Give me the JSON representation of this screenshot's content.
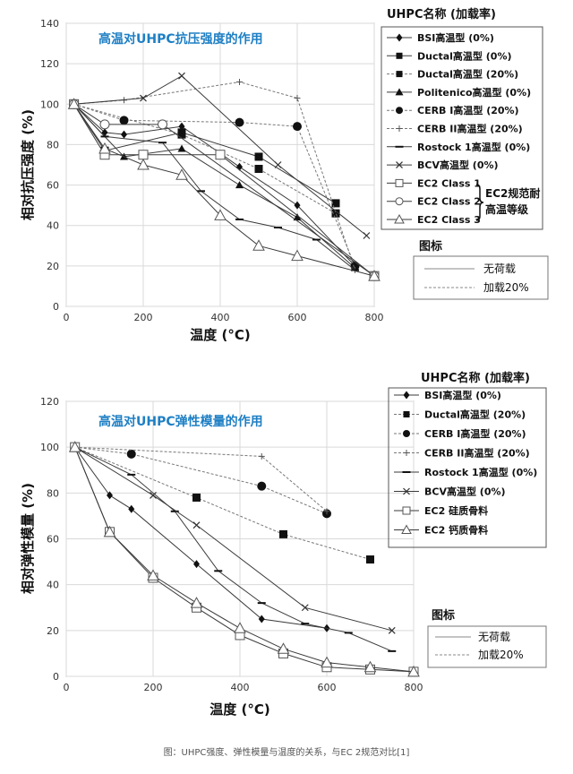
{
  "colors": {
    "line": "#3a3a3a",
    "axis": "#999999",
    "grid": "#d9d9d9",
    "title": "#1e7fc4"
  },
  "caption": "图：UHPC强度、弹性模量与温度的关系，与EC 2规范对比[1]",
  "chart_data": [
    {
      "type": "line",
      "title": "高温对UHPC抗压强度的作用",
      "xlabel": "温度 (°C)",
      "ylabel": "相对抗压强度 (%)",
      "xlim": [
        0,
        800
      ],
      "ylim": [
        0,
        140
      ],
      "xticks": [
        "0",
        "200",
        "400",
        "600",
        "800"
      ],
      "yticks": [
        "0",
        "20",
        "40",
        "60",
        "80",
        "100",
        "120",
        "140"
      ],
      "grid": true,
      "legend_title": "UHPC名称 (加载率)",
      "legend_group_label": [
        "EC2规范耐",
        "高温等级"
      ],
      "style_legend_title": "图标",
      "style_legend": [
        "无荷载",
        "加载20%"
      ],
      "series": [
        {
          "name": "BSI高温型 (0%)",
          "marker": "diamond",
          "dash": false,
          "x": [
            20,
            100,
            150,
            300,
            450,
            600,
            750
          ],
          "y": [
            100,
            86,
            85,
            89,
            69,
            50,
            20
          ]
        },
        {
          "name": "Ductal高温型 (0%)",
          "marker": "square",
          "dash": false,
          "x": [
            20,
            100,
            300,
            500,
            700
          ],
          "y": [
            100,
            77,
            86,
            74,
            51
          ]
        },
        {
          "name": "Ductal高温型 (20%)",
          "marker": "square",
          "dash": true,
          "x": [
            20,
            300,
            500,
            700
          ],
          "y": [
            100,
            85,
            68,
            46
          ]
        },
        {
          "name": "Politenico高温型 (0%)",
          "marker": "triangle",
          "dash": false,
          "x": [
            20,
            150,
            300,
            450,
            600,
            750
          ],
          "y": [
            100,
            74,
            78,
            60,
            44,
            19
          ]
        },
        {
          "name": "CERB I高温型 (20%)",
          "marker": "circle",
          "dash": true,
          "x": [
            20,
            150,
            450,
            600,
            750
          ],
          "y": [
            100,
            92,
            91,
            89,
            20
          ]
        },
        {
          "name": "CERB II高温型 (20%)",
          "marker": "plus",
          "dash": true,
          "x": [
            20,
            150,
            450,
            600,
            750
          ],
          "y": [
            100,
            102,
            111,
            103,
            18
          ]
        },
        {
          "name": "Rostock 1高温型 (0%)",
          "marker": "dash",
          "dash": false,
          "x": [
            20,
            100,
            250,
            350,
            450,
            550,
            650,
            750
          ],
          "y": [
            100,
            84,
            81,
            57,
            43,
            39,
            33,
            18
          ]
        },
        {
          "name": "BCV高温型 (0%)",
          "marker": "x",
          "dash": false,
          "x": [
            20,
            200,
            300,
            550,
            780
          ],
          "y": [
            100,
            103,
            114,
            70,
            35
          ]
        },
        {
          "name": "EC2 Class 1",
          "marker": "open-square",
          "dash": false,
          "x": [
            20,
            100,
            200,
            400,
            800
          ],
          "y": [
            100,
            75,
            75,
            75,
            15
          ]
        },
        {
          "name": "EC2 Class 2",
          "marker": "open-circle",
          "dash": false,
          "x": [
            20,
            100,
            250,
            800
          ],
          "y": [
            100,
            90,
            90,
            15
          ]
        },
        {
          "name": "EC2 Class 3",
          "marker": "open-triangle",
          "dash": false,
          "x": [
            20,
            100,
            200,
            300,
            400,
            500,
            600,
            800
          ],
          "y": [
            100,
            78,
            70,
            65,
            45,
            30,
            25,
            15
          ]
        }
      ]
    },
    {
      "type": "line",
      "title": "高温对UHPC弹性模量的作用",
      "xlabel": "温度 (°C)",
      "ylabel": "相对弹性模量 (%)",
      "xlim": [
        0,
        800
      ],
      "ylim": [
        0,
        120
      ],
      "xticks": [
        "0",
        "200",
        "400",
        "600",
        "800"
      ],
      "yticks": [
        "0",
        "20",
        "40",
        "60",
        "80",
        "100",
        "120"
      ],
      "grid": true,
      "legend_title": "UHPC名称 (加载率)",
      "style_legend_title": "图标",
      "style_legend": [
        "无荷载",
        "加载20%"
      ],
      "series": [
        {
          "name": "BSI高温型 (0%)",
          "marker": "diamond",
          "dash": false,
          "x": [
            20,
            100,
            150,
            300,
            450,
            600
          ],
          "y": [
            100,
            79,
            73,
            49,
            25,
            21
          ]
        },
        {
          "name": "Ductal高温型 (20%)",
          "marker": "square",
          "dash": true,
          "x": [
            20,
            300,
            500,
            700
          ],
          "y": [
            100,
            78,
            62,
            51
          ]
        },
        {
          "name": "CERB I高温型 (20%)",
          "marker": "circle",
          "dash": true,
          "x": [
            20,
            150,
            450,
            600
          ],
          "y": [
            100,
            97,
            83,
            71
          ]
        },
        {
          "name": "CERB II高温型 (20%)",
          "marker": "plus",
          "dash": true,
          "x": [
            20,
            450,
            600
          ],
          "y": [
            100,
            96,
            72
          ]
        },
        {
          "name": "Rostock 1高温型 (0%)",
          "marker": "dash",
          "dash": false,
          "x": [
            20,
            150,
            250,
            350,
            450,
            550,
            650,
            750
          ],
          "y": [
            100,
            88,
            72,
            46,
            32,
            23,
            19,
            11
          ]
        },
        {
          "name": "BCV高温型 (0%)",
          "marker": "x",
          "dash": false,
          "x": [
            20,
            200,
            300,
            550,
            750
          ],
          "y": [
            100,
            79,
            66,
            30,
            20
          ]
        },
        {
          "name": "EC2 硅质骨料",
          "marker": "open-square",
          "dash": false,
          "x": [
            20,
            100,
            200,
            300,
            400,
            500,
            600,
            700,
            800
          ],
          "y": [
            100,
            63,
            43,
            30,
            18,
            10,
            4,
            3,
            2
          ]
        },
        {
          "name": "EC2 钙质骨料",
          "marker": "open-triangle",
          "dash": false,
          "x": [
            20,
            100,
            200,
            300,
            400,
            500,
            600,
            700,
            800
          ],
          "y": [
            100,
            63,
            44,
            32,
            21,
            12,
            6,
            4,
            2
          ]
        }
      ]
    }
  ]
}
